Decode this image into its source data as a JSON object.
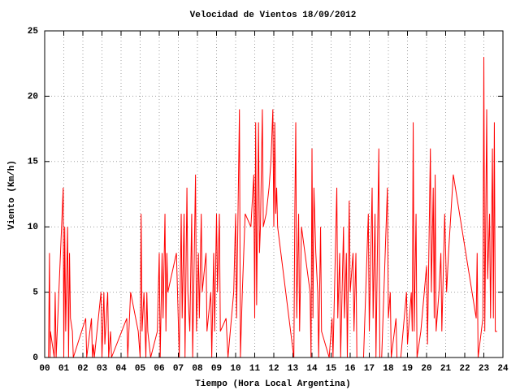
{
  "chart_data": {
    "type": "line",
    "title": "Velocidad de Vientos 18/09/2012",
    "x_label": "Tiempo (Hora Local Argentina)",
    "y_label": "Viento (Km/h)",
    "color": "#ff0000",
    "grid": true,
    "xlim": [
      0,
      24
    ],
    "ylim": [
      0,
      25
    ],
    "yticks": [
      0,
      5,
      10,
      15,
      20,
      25
    ],
    "xticks": [
      {
        "value": 0,
        "label": "00"
      },
      {
        "value": 1,
        "label": "01"
      },
      {
        "value": 2,
        "label": "02"
      },
      {
        "value": 3,
        "label": "03"
      },
      {
        "value": 4,
        "label": "04"
      },
      {
        "value": 5,
        "label": "05"
      },
      {
        "value": 6,
        "label": "06"
      },
      {
        "value": 7,
        "label": "07"
      },
      {
        "value": 8,
        "label": "08"
      },
      {
        "value": 9,
        "label": "09"
      },
      {
        "value": 10,
        "label": "10"
      },
      {
        "value": 11,
        "label": "11"
      },
      {
        "value": 12,
        "label": "12"
      },
      {
        "value": 13,
        "label": "13"
      },
      {
        "value": 14,
        "label": "14"
      },
      {
        "value": 15,
        "label": "15"
      },
      {
        "value": 16,
        "label": "16"
      },
      {
        "value": 17,
        "label": "17"
      },
      {
        "value": 18,
        "label": "18"
      },
      {
        "value": 19,
        "label": "19"
      },
      {
        "value": 20,
        "label": "20"
      },
      {
        "value": 21,
        "label": "21"
      },
      {
        "value": 22,
        "label": "22"
      },
      {
        "value": 23,
        "label": "23"
      },
      {
        "value": 24,
        "label": "24"
      }
    ],
    "x": [
      0.2,
      0.25,
      0.28,
      0.3,
      0.5,
      0.55,
      0.6,
      0.97,
      1.0,
      1.05,
      1.1,
      1.2,
      1.25,
      1.3,
      1.35,
      1.45,
      1.5,
      2.15,
      2.2,
      2.45,
      2.5,
      2.55,
      2.6,
      2.95,
      3.0,
      3.1,
      3.15,
      3.3,
      3.35,
      3.45,
      3.5,
      4.3,
      4.35,
      4.5,
      4.9,
      5.0,
      5.05,
      5.1,
      5.2,
      5.3,
      5.35,
      5.4,
      5.55,
      5.9,
      6.0,
      6.05,
      6.15,
      6.2,
      6.3,
      6.35,
      6.4,
      6.45,
      6.9,
      7.05,
      7.15,
      7.2,
      7.3,
      7.35,
      7.45,
      7.5,
      7.6,
      7.7,
      7.75,
      7.9,
      7.95,
      8.05,
      8.1,
      8.2,
      8.25,
      8.45,
      8.5,
      8.7,
      8.75,
      8.85,
      8.9,
      9.0,
      9.05,
      9.15,
      9.2,
      9.5,
      9.6,
      9.9,
      10.0,
      10.05,
      10.2,
      10.25,
      10.35,
      10.5,
      10.8,
      10.95,
      11.0,
      11.05,
      11.1,
      11.2,
      11.25,
      11.3,
      11.4,
      11.45,
      11.6,
      11.75,
      11.85,
      11.95,
      12.0,
      12.05,
      12.1,
      12.15,
      12.2,
      13.05,
      13.1,
      13.15,
      13.2,
      13.3,
      13.35,
      13.45,
      13.9,
      13.95,
      14.0,
      14.05,
      14.1,
      14.2,
      14.3,
      14.35,
      14.45,
      14.5,
      14.9,
      15.05,
      15.1,
      15.3,
      15.35,
      15.45,
      15.5,
      15.65,
      15.7,
      15.8,
      15.85,
      15.95,
      16.0,
      16.15,
      16.2,
      16.3,
      16.35,
      16.7,
      16.95,
      17.0,
      17.15,
      17.2,
      17.3,
      17.35,
      17.5,
      17.55,
      17.65,
      17.95,
      18.0,
      18.1,
      18.15,
      18.4,
      18.45,
      18.65,
      18.95,
      19.0,
      19.2,
      19.25,
      19.3,
      19.35,
      19.45,
      19.5,
      19.7,
      20.0,
      20.05,
      20.2,
      20.25,
      20.35,
      20.4,
      20.45,
      20.5,
      20.65,
      20.75,
      20.8,
      20.95,
      21.05,
      21.15,
      21.4,
      22.6,
      22.65,
      22.7,
      22.95,
      23.0,
      23.05,
      23.15,
      23.2,
      23.3,
      23.35,
      23.45,
      23.5,
      23.55,
      23.6,
      23.7
    ],
    "values": [
      0,
      8,
      0,
      2,
      0,
      5,
      0,
      13,
      0,
      10,
      2,
      10,
      0,
      8,
      3,
      2,
      0,
      3,
      0,
      3,
      0,
      1,
      0,
      5,
      0,
      5,
      1,
      5,
      0,
      2,
      0,
      3,
      0,
      5,
      2,
      0,
      11,
      2,
      5,
      0,
      5,
      2,
      0,
      2,
      8,
      0,
      8,
      3,
      11,
      2,
      8,
      5,
      8,
      0,
      11,
      3,
      11,
      0,
      13,
      5,
      2,
      11,
      0,
      14,
      2,
      8,
      3,
      11,
      5,
      8,
      2,
      5,
      0,
      8,
      2,
      11,
      5,
      11,
      2,
      3,
      0,
      5,
      11,
      3,
      19,
      0,
      5,
      11,
      10,
      14,
      3,
      18,
      4,
      18,
      8,
      10,
      19,
      10,
      11,
      13,
      15,
      19,
      10,
      18,
      11,
      13,
      10,
      0,
      11,
      18,
      3,
      11,
      2,
      10,
      5,
      0,
      16,
      3,
      13,
      8,
      5,
      0,
      10,
      2,
      0,
      3,
      0,
      13,
      3,
      8,
      0,
      10,
      3,
      8,
      0,
      12,
      5,
      8,
      2,
      8,
      0,
      0,
      11,
      2,
      13,
      3,
      11,
      0,
      16,
      0,
      0,
      13,
      3,
      5,
      0,
      3,
      0,
      0,
      5,
      1,
      5,
      2,
      18,
      2,
      11,
      0,
      2,
      7,
      1,
      16,
      5,
      13,
      3,
      14,
      2,
      5,
      8,
      2,
      11,
      5,
      8,
      14,
      3,
      8,
      0,
      3,
      23,
      2,
      19,
      6,
      11,
      3,
      16,
      3,
      18,
      2,
      2
    ]
  }
}
